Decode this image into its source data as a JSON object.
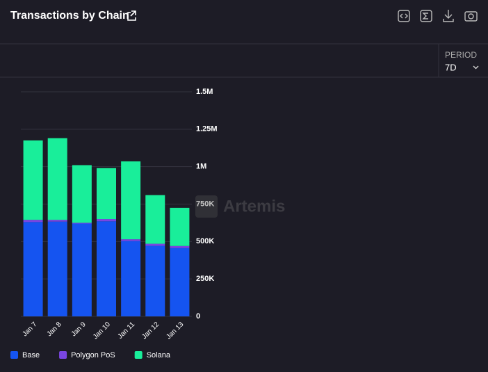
{
  "header": {
    "title": "Transactions by Chain"
  },
  "period": {
    "label": "PERIOD",
    "value": "7D"
  },
  "watermark": "Artemis",
  "chart_data": {
    "type": "stacked_bar",
    "categories": [
      "Jan 7",
      "Jan 8",
      "Jan 9",
      "Jan 10",
      "Jan 11",
      "Jan 12",
      "Jan 13"
    ],
    "series": [
      {
        "name": "Base",
        "color": "#1554f0",
        "values": [
          630000,
          633000,
          620000,
          635000,
          503000,
          471000,
          456000
        ]
      },
      {
        "name": "Polygon PoS",
        "color": "#7a46e2",
        "values": [
          15000,
          12000,
          5000,
          15000,
          12000,
          14000,
          14000
        ]
      },
      {
        "name": "Solana",
        "color": "#19ee9a",
        "values": [
          530000,
          545000,
          385000,
          340000,
          520000,
          325000,
          255000
        ]
      }
    ],
    "ylim": [
      0,
      1500000
    ],
    "yticks": [
      0,
      {
        "value": 250000,
        "label": "250K"
      },
      {
        "value": 500000,
        "label": "500K"
      },
      {
        "value": 750000,
        "label": "750K"
      },
      {
        "value": 1000000,
        "label": "1M"
      },
      {
        "value": 1250000,
        "label": "1.25M"
      },
      {
        "value": 1500000,
        "label": "1.5M"
      }
    ],
    "grid": true
  }
}
